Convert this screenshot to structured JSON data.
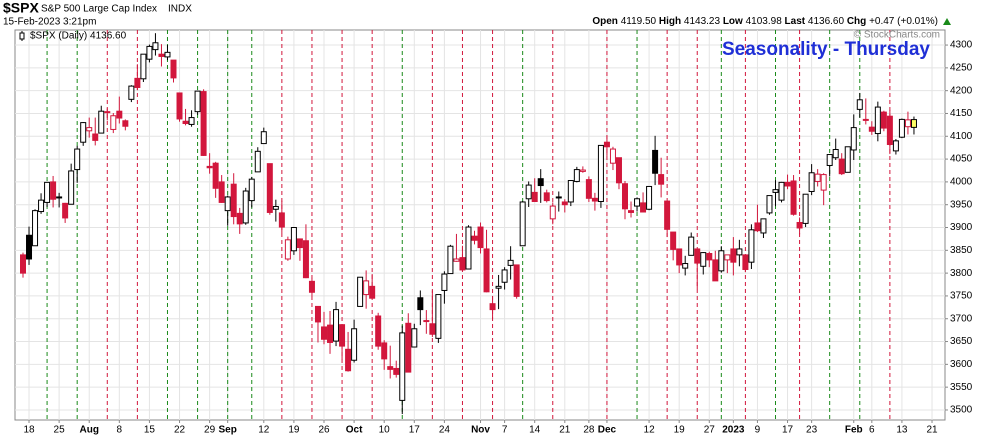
{
  "header": {
    "symbol": "$SPX",
    "name": "S&P 500 Large Cap Index",
    "exchange": "INDX",
    "timestamp": "15-Feb-2023 3:21pm",
    "quote": [
      "Open",
      "4119.50",
      "High",
      "4143.23",
      "Low",
      "4103.98",
      "Last",
      "4136.60",
      "Chg",
      "+0.47 (+0.01%)"
    ],
    "copyright": "© StockCharts.com"
  },
  "chart_data": {
    "type": "candlestick",
    "title": "Seasonality - Thursday",
    "legend": "$SPX (Daily) 4136.60",
    "up_color": "#000000",
    "down_color": "#d2173c",
    "highlight_up_color": "#1a8a1a",
    "highlight_down_color": "#d2173c",
    "categories": [
      null,
      "18",
      null,
      null,
      null,
      null,
      "25",
      null,
      null,
      null,
      null,
      "Aug",
      null,
      null,
      null,
      null,
      "8",
      null,
      null,
      null,
      null,
      "15",
      null,
      null,
      null,
      null,
      "22",
      null,
      null,
      null,
      null,
      "29",
      null,
      null,
      "Sep",
      null,
      null,
      null,
      null,
      null,
      "12",
      null,
      null,
      null,
      null,
      "19",
      null,
      null,
      null,
      null,
      "26",
      null,
      null,
      null,
      null,
      "Oct",
      null,
      null,
      null,
      null,
      "10",
      null,
      null,
      null,
      null,
      "17",
      null,
      null,
      null,
      null,
      "24",
      null,
      null,
      null,
      null,
      null,
      "Nov",
      null,
      null,
      null,
      "7",
      null,
      null,
      null,
      null,
      "14",
      null,
      null,
      null,
      null,
      "21",
      null,
      null,
      null,
      "28",
      null,
      null,
      "Dec",
      null,
      null,
      null,
      null,
      null,
      null,
      "12",
      null,
      null,
      null,
      null,
      "19",
      null,
      null,
      null,
      null,
      "27",
      null,
      null,
      null,
      "2023",
      null,
      null,
      null,
      "9",
      null,
      null,
      null,
      null,
      "17",
      null,
      null,
      null,
      "23",
      null,
      null,
      null,
      null,
      null,
      null,
      "Feb",
      null,
      null,
      "6",
      null,
      null,
      null,
      null,
      "13",
      null,
      null,
      null,
      null,
      "21"
    ],
    "open": [
      3840,
      3883,
      3860,
      3935,
      3955,
      4000,
      3965,
      3953,
      3951,
      4027,
      4087,
      4112,
      4105,
      4107,
      4154,
      4115,
      4155,
      4134,
      4181,
      4227,
      4226,
      4269,
      4290,
      4280,
      4274,
      4267,
      4195,
      4133,
      4126,
      4154,
      4198,
      4034,
      4041,
      4000,
      3937,
      3995,
      3931,
      3910,
      3959,
      4022,
      4084,
      4040,
      3940,
      3932,
      3831,
      3849,
      3875,
      3871,
      3782,
      3727,
      3682,
      3686,
      3651,
      3687,
      3633,
      3609,
      3727,
      3753,
      3771,
      3706,
      3647,
      3595,
      3591,
      3521,
      3690,
      3638,
      3746,
      3696,
      3689,
      3657,
      3762,
      3799,
      3826,
      3834,
      3809,
      3881,
      3901,
      3853,
      3733,
      3767,
      3780,
      3817,
      3818,
      3860,
      3963,
      3977,
      4007,
      3976,
      3919,
      3967,
      3956,
      3956,
      4001,
      4023,
      4005,
      3964,
      3957,
      4087,
      4041,
      4053,
      3996,
      3937,
      3947,
      3954,
      3940,
      4069,
      4016,
      3958,
      3890,
      3853,
      3811,
      3839,
      3853,
      3815,
      3843,
      3829,
      3805,
      3829,
      3853,
      3840,
      3840,
      3824,
      3910,
      3888,
      3932,
      3977,
      3960,
      3999,
      4002,
      3911,
      3909,
      3979,
      4001,
      3982,
      4036,
      4053,
      4050,
      4021,
      4070,
      4159,
      4137,
      4120,
      4106,
      4153,
      4144,
      4068,
      4098,
      4121,
      4119.5,
      null,
      null,
      null
    ],
    "high": [
      3845,
      3902,
      3940,
      3975,
      4000,
      4013,
      3976,
      3954,
      4040,
      4079,
      4131,
      4141,
      4141,
      4167,
      4161,
      4151,
      4187,
      4137,
      4212,
      4258,
      4280,
      4301,
      4326,
      4302,
      4300,
      4267,
      4195,
      4160,
      4157,
      4200,
      4203,
      4063,
      4044,
      4015,
      3970,
      4019,
      3943,
      3987,
      4011,
      4076,
      4119,
      4040,
      3961,
      3959,
      3880,
      3901,
      3876,
      3907,
      3790,
      3727,
      3715,
      3717,
      3737,
      3687,
      3671,
      3698,
      3791,
      3806,
      3798,
      3713,
      3653,
      3641,
      3608,
      3685,
      3712,
      3689,
      3762,
      3719,
      3762,
      3753,
      3804,
      3862,
      3886,
      3860,
      3905,
      3893,
      3911,
      3895,
      3750,
      3796,
      3813,
      3859,
      3818,
      3958,
      4001,
      4008,
      4028,
      3983,
      3955,
      3979,
      3962,
      4004,
      4033,
      4034,
      4012,
      3976,
      4080,
      4101,
      4077,
      4053,
      4002,
      3957,
      3966,
      3977,
      3991,
      4101,
      4053,
      3958,
      3890,
      3854,
      3838,
      3889,
      3853,
      3846,
      3847,
      3849,
      3859,
      3840,
      3879,
      3873,
      3840,
      3907,
      3950,
      3919,
      3970,
      4004,
      4000,
      4016,
      4015,
      3922,
      3973,
      4039,
      4028,
      4019,
      4061,
      4095,
      4063,
      4077,
      4148,
      4195,
      4183,
      4133,
      4176,
      4156,
      4157,
      4094,
      4139,
      4154,
      4143.23,
      null,
      null,
      null
    ],
    "low": [
      3790,
      3818,
      3860,
      3930,
      3945,
      3944,
      3944,
      3910,
      3951,
      3998,
      4079,
      4097,
      4080,
      4107,
      4135,
      4107,
      4128,
      4113,
      4175,
      4201,
      4219,
      4262,
      4277,
      4253,
      4267,
      4218,
      4132,
      4124,
      4121,
      4147,
      4057,
      4018,
      3965,
      3954,
      3904,
      3907,
      3886,
      3906,
      3944,
      4022,
      4084,
      3928,
      3913,
      3888,
      3827,
      3840,
      3827,
      3789,
      3749,
      3648,
      3644,
      3623,
      3640,
      3610,
      3584,
      3604,
      3727,
      3722,
      3744,
      3632,
      3588,
      3569,
      3571,
      3491,
      3584,
      3638,
      3686,
      3667,
      3660,
      3647,
      3733,
      3799,
      3825,
      3803,
      3809,
      3863,
      3843,
      3758,
      3699,
      3721,
      3764,
      3786,
      3744,
      3860,
      3945,
      3957,
      3954,
      3955,
      3907,
      3935,
      3933,
      3947,
      3999,
      4020,
      3956,
      3937,
      3943,
      4057,
      4026,
      3984,
      3918,
      3922,
      3935,
      3933,
      3938,
      3993,
      3966,
      3879,
      3828,
      3800,
      3795,
      3839,
      3765,
      3797,
      3813,
      3783,
      3801,
      3800,
      3795,
      3815,
      3802,
      3809,
      3890,
      3877,
      3928,
      3947,
      3955,
      3984,
      3926,
      3885,
      3901,
      3971,
      3990,
      3949,
      4012,
      4048,
      4015,
      4021,
      4048,
      4141,
      4126,
      4103,
      4089,
      4111,
      4061,
      4060,
      4096,
      4104,
      4103.98,
      null,
      null,
      null
    ],
    "close": [
      3800,
      3831,
      3937,
      3960,
      3999,
      3962,
      3967,
      3921,
      4024,
      4072,
      4130,
      4119,
      4091,
      4155,
      4152,
      4145,
      4140,
      4122,
      4210,
      4207,
      4280,
      4297,
      4305,
      4275,
      4284,
      4228,
      4138,
      4128,
      4141,
      4199,
      4058,
      4031,
      3986,
      3955,
      3967,
      3924,
      3908,
      3980,
      4006,
      4067,
      4110,
      3933,
      3946,
      3901,
      3873,
      3900,
      3856,
      3790,
      3758,
      3693,
      3655,
      3648,
      3720,
      3640,
      3586,
      3678,
      3791,
      3783,
      3745,
      3640,
      3612,
      3589,
      3578,
      3669,
      3583,
      3678,
      3720,
      3695,
      3666,
      3753,
      3798,
      3859,
      3831,
      3807,
      3901,
      3872,
      3856,
      3759,
      3720,
      3771,
      3807,
      3828,
      3749,
      3956,
      3993,
      3957,
      3992,
      3959,
      3947,
      3965,
      3950,
      4003,
      4027,
      4026,
      3964,
      3958,
      4080,
      4077,
      4072,
      3998,
      3941,
      3933,
      3963,
      3934,
      3990,
      4019,
      3995,
      3896,
      3852,
      3818,
      3821,
      3879,
      3822,
      3845,
      3829,
      3783,
      3849,
      3840,
      3824,
      3853,
      3808,
      3895,
      3893,
      3919,
      3970,
      3983,
      3999,
      3991,
      3929,
      3899,
      3973,
      4020,
      4017,
      4016,
      4060,
      4071,
      4018,
      4077,
      4119,
      4180,
      4136,
      4111,
      4164,
      4118,
      4082,
      4090,
      4137,
      4136,
      4136.6,
      null,
      null,
      null
    ],
    "highlight_days": [
      4,
      9,
      14,
      19,
      24,
      29,
      34,
      38,
      43,
      48,
      53,
      58,
      63,
      68,
      73,
      78,
      83,
      88,
      97,
      102,
      107,
      112,
      116,
      120,
      125,
      129,
      134,
      139,
      144
    ],
    "ylim": [
      3478,
      4333
    ],
    "yticks": [
      3500,
      3550,
      3600,
      3650,
      3700,
      3750,
      3800,
      3850,
      3900,
      3950,
      4000,
      4050,
      4100,
      4150,
      4200,
      4250,
      4300
    ],
    "grid": true
  }
}
